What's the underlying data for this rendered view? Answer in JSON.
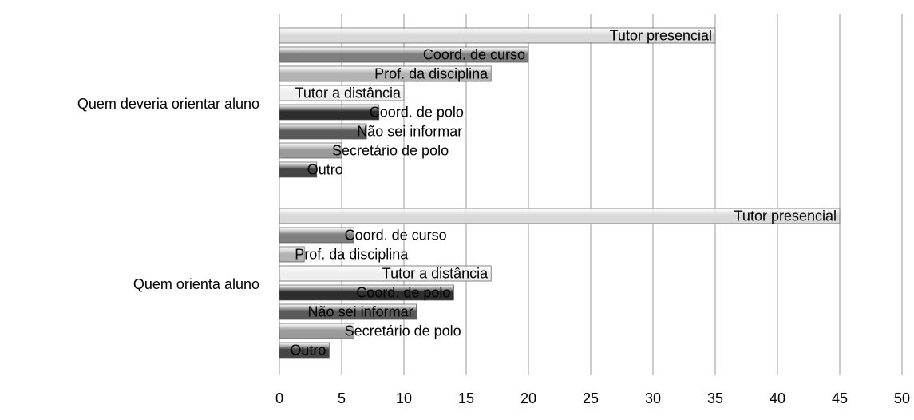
{
  "chart_data": {
    "type": "bar",
    "orientation": "horizontal",
    "categories": [
      "Quem deveria orientar aluno",
      "Quem orienta aluno"
    ],
    "series": [
      {
        "name": "Tutor presencial",
        "color": "#d9d9d9",
        "values": [
          35,
          45
        ]
      },
      {
        "name": "Coord. de curso",
        "color": "#7f7f7f",
        "values": [
          20,
          6
        ]
      },
      {
        "name": "Prof. da disciplina",
        "color": "#b3b3b3",
        "values": [
          17,
          2
        ]
      },
      {
        "name": "Tutor a distância",
        "color": "#eeeeee",
        "values": [
          10,
          17
        ]
      },
      {
        "name": "Coord. de polo",
        "color": "#2e2e2e",
        "values": [
          8,
          14
        ]
      },
      {
        "name": "Não sei informar",
        "color": "#5a5a5a",
        "values": [
          7,
          11
        ]
      },
      {
        "name": "Secretário de polo",
        "color": "#9a9a9a",
        "values": [
          5,
          6
        ]
      },
      {
        "name": "Outro",
        "color": "#454545",
        "values": [
          3,
          4
        ]
      }
    ],
    "xlim": [
      0,
      50
    ],
    "xticks": [
      0,
      5,
      10,
      15,
      20,
      25,
      30,
      35,
      40,
      45,
      50
    ],
    "grid": true
  }
}
